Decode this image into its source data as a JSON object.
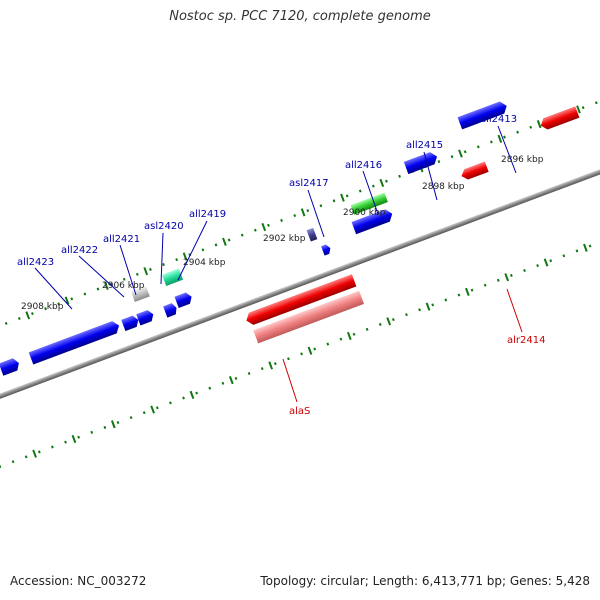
{
  "title": "Nostoc sp. PCC 7120, complete genome",
  "footer": {
    "accession": "Accession: NC_003272",
    "topology": "Topology: circular; Length: 6,413,771 bp; Genes: 5,428"
  },
  "colors": {
    "forward_gene": "#1010ee",
    "reverse_gene": "#ee1010",
    "rna_gene": "#f08080",
    "highlight_green": "#33cc33",
    "highlight_teal": "#22dd99",
    "pseudo_gray": "#c0c0c0",
    "small_dark": "#404090",
    "backbone": "#888888",
    "tick_dots": "#117711",
    "forward_label": "#0000aa",
    "reverse_label": "#cc0000"
  },
  "scale_labels": [
    "2896 kbp",
    "2898 kbp",
    "2900 kbp",
    "2902 kbp",
    "2904 kbp",
    "2906 kbp",
    "2908 kbp"
  ],
  "gene_labels_forward": [
    "all2413",
    "all2415",
    "all2416",
    "asl2417",
    "all2419",
    "asl2420",
    "all2421",
    "all2422",
    "all2423"
  ],
  "gene_labels_reverse": [
    "alr2414",
    "alaS"
  ]
}
